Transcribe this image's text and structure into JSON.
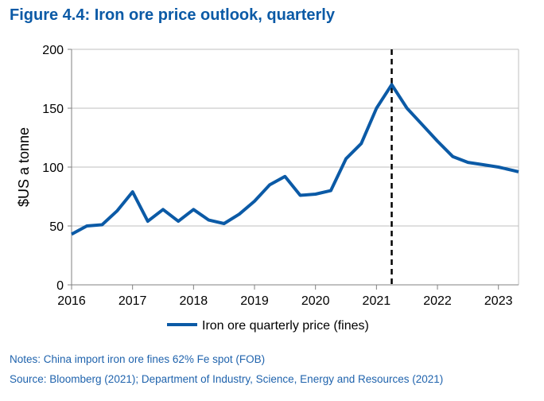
{
  "figure": {
    "title": "Figure 4.4: Iron ore price outlook, quarterly",
    "notes": "Notes: China import iron ore fines 62% Fe spot (FOB)",
    "source": "Source: Bloomberg (2021); Department of Industry, Science, Energy and Resources (2021)"
  },
  "colors": {
    "title": "#0b5aa6",
    "series": "#0b5aa6",
    "notes": "#1f63ad",
    "grid": "#bfbfbf",
    "forecast_marker": "#000000"
  },
  "chart_data": {
    "type": "line",
    "title": "Figure 4.4: Iron ore price outlook, quarterly",
    "xlabel": "",
    "ylabel": "$US a tonne",
    "xlim": [
      2016,
      2023.33
    ],
    "ylim": [
      0,
      200
    ],
    "yticks": [
      0,
      50,
      100,
      150,
      200
    ],
    "xticks": [
      2016,
      2017,
      2018,
      2019,
      2020,
      2021,
      2022,
      2023
    ],
    "grid": "horizontal",
    "legend_position": "bottom",
    "forecast_start": 2021.25,
    "series": [
      {
        "name": "Iron ore quarterly price (fines)",
        "x": [
          2016.0,
          2016.25,
          2016.5,
          2016.75,
          2017.0,
          2017.25,
          2017.5,
          2017.75,
          2018.0,
          2018.25,
          2018.5,
          2018.75,
          2019.0,
          2019.25,
          2019.5,
          2019.75,
          2020.0,
          2020.25,
          2020.5,
          2020.75,
          2021.0,
          2021.25,
          2021.5,
          2021.75,
          2022.0,
          2022.25,
          2022.5,
          2022.75,
          2023.0,
          2023.25,
          2023.33
        ],
        "values": [
          43,
          50,
          51,
          63,
          79,
          54,
          64,
          54,
          64,
          55,
          52,
          60,
          71,
          85,
          92,
          76,
          77,
          80,
          107,
          120,
          150,
          170,
          150,
          136,
          122,
          109,
          104,
          102,
          100,
          97,
          96
        ]
      }
    ]
  }
}
